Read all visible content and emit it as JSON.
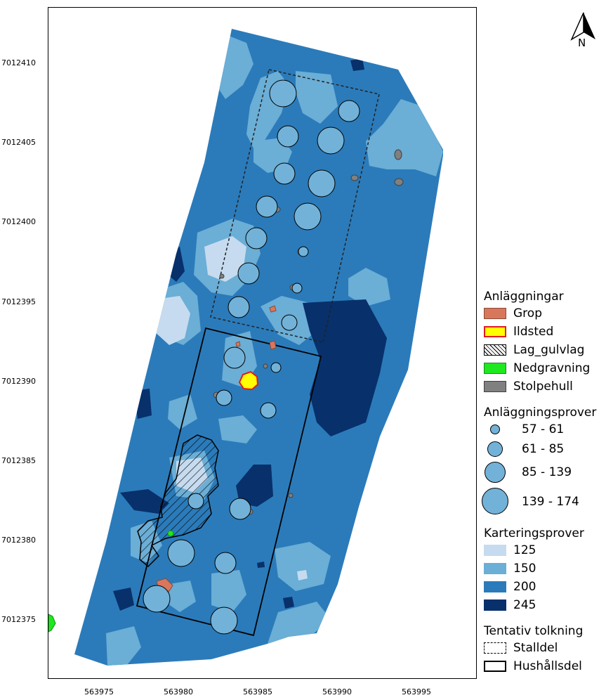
{
  "north_arrow": {
    "label": "N"
  },
  "axes": {
    "y_ticks": [
      "7012410",
      "7012405",
      "7012400",
      "7012395",
      "7012390",
      "7012385",
      "7012380",
      "7012375"
    ],
    "x_ticks": [
      "563975",
      "563980",
      "563985",
      "563990",
      "563995"
    ]
  },
  "legend": {
    "features": {
      "title": "Anläggningar",
      "items": [
        {
          "label": "Grop",
          "fill": "#d9775c",
          "stroke": "#8a4a36"
        },
        {
          "label": "Ildsted",
          "fill": "#ffff00",
          "stroke": "#e31a1c"
        },
        {
          "label": "Lag_gulvlag",
          "fill": "hatch",
          "stroke": "#000000"
        },
        {
          "label": "Nedgravning",
          "fill": "#1ee81e",
          "stroke": "#1a8a1a"
        },
        {
          "label": "Stolpehull",
          "fill": "#808080",
          "stroke": "#404040"
        }
      ]
    },
    "samples": {
      "title": "Anläggningsprover",
      "items": [
        {
          "label": "57 - 61"
        },
        {
          "label": "61 - 85"
        },
        {
          "label": "85 - 139"
        },
        {
          "label": "139 - 174"
        }
      ],
      "color": "#73b2d8"
    },
    "mapping": {
      "title": "Karteringsprover",
      "items": [
        {
          "label": "125",
          "color": "#c6dbef"
        },
        {
          "label": "150",
          "color": "#6baed6"
        },
        {
          "label": "200",
          "color": "#2b7bba"
        },
        {
          "label": "245",
          "color": "#08306b"
        }
      ]
    },
    "interpretation": {
      "title": "Tentativ tolkning",
      "items": [
        {
          "label": "Stalldel",
          "style": "dashed"
        },
        {
          "label": "Hushållsdel",
          "style": "solid"
        }
      ]
    }
  }
}
